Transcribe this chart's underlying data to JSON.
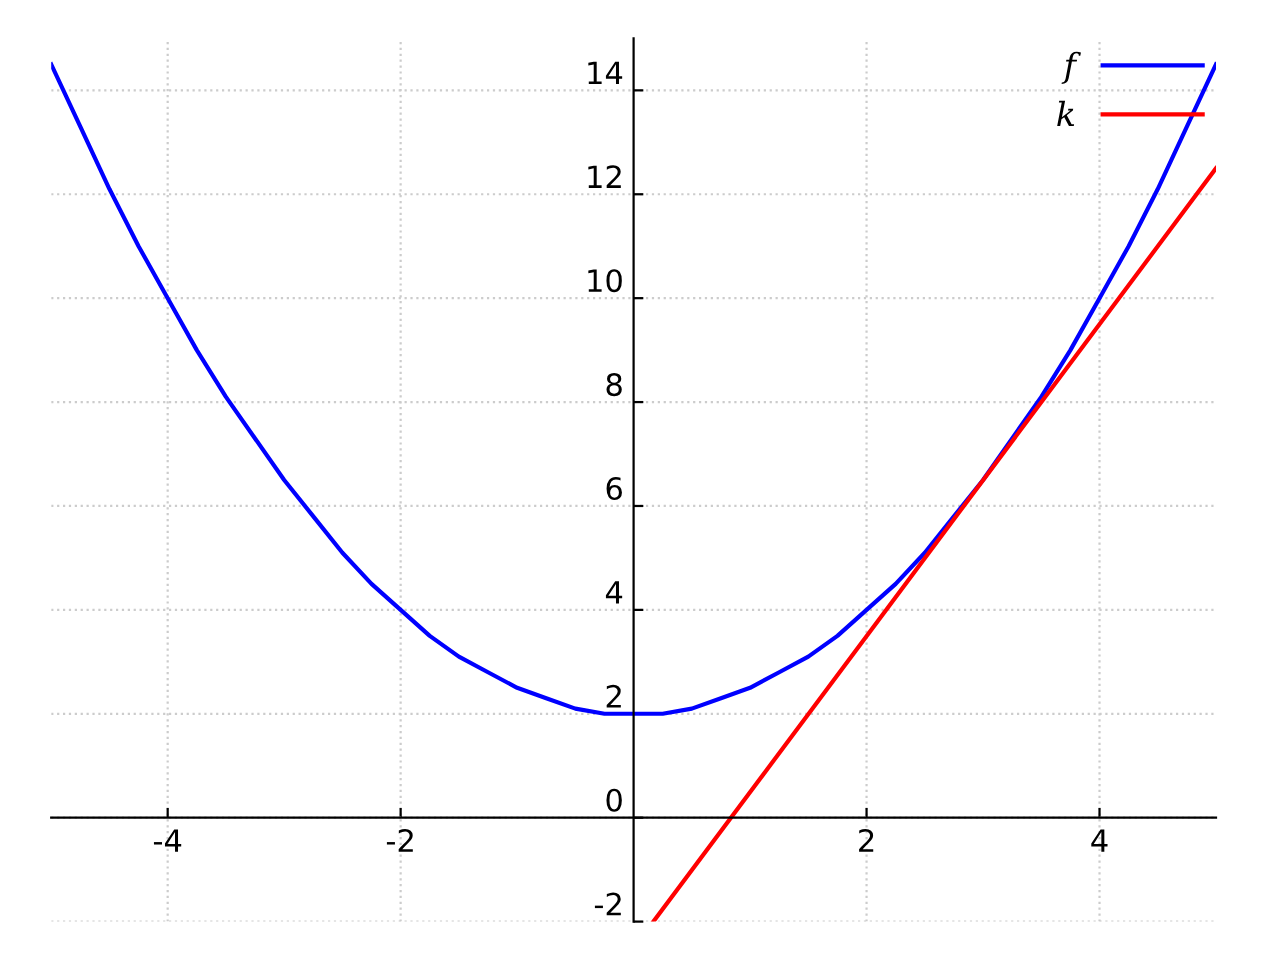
{
  "chart_data": {
    "type": "line",
    "xlim": [
      -5,
      5
    ],
    "ylim": [
      -2,
      15
    ],
    "xticks": [
      -4,
      -2,
      2,
      4
    ],
    "yticks": [
      -2,
      0,
      2,
      4,
      6,
      8,
      10,
      12,
      14
    ],
    "grid": true,
    "legend": "top right",
    "line_style": "solid",
    "marker": "none",
    "series": [
      {
        "name": "f",
        "color": "#0000ff",
        "x": [
          -5,
          -4.75,
          -4.5,
          -4.25,
          -4,
          -3.75,
          -3.5,
          -3.25,
          -3,
          -2.75,
          -2.5,
          -2.25,
          -2,
          -1.75,
          -1.5,
          -1.25,
          -1,
          -0.75,
          -0.5,
          -0.25,
          0,
          0.25,
          0.5,
          0.75,
          1,
          1.25,
          1.5,
          1.75,
          2,
          2.25,
          2.5,
          2.75,
          3,
          3.25,
          3.5,
          3.75,
          4,
          4.25,
          4.5,
          4.75,
          5
        ],
        "values": [
          14.5,
          13.3,
          12.1,
          11.0,
          10,
          9.0,
          8.1,
          7.3,
          6.5,
          5.8,
          5.1,
          4.5,
          4,
          3.5,
          3.1,
          2.8,
          2.5,
          2.3,
          2.1,
          2.0,
          2,
          2.0,
          2.1,
          2.3,
          2.5,
          2.8,
          3.1,
          3.5,
          4,
          4.5,
          5.1,
          5.8,
          6.5,
          7.3,
          8.1,
          9.0,
          10,
          11.0,
          12.1,
          13.3,
          14.5
        ]
      },
      {
        "name": "k",
        "color": "#ff0000",
        "x": [
          0.17,
          5
        ],
        "values": [
          -2,
          12.5
        ]
      }
    ]
  }
}
